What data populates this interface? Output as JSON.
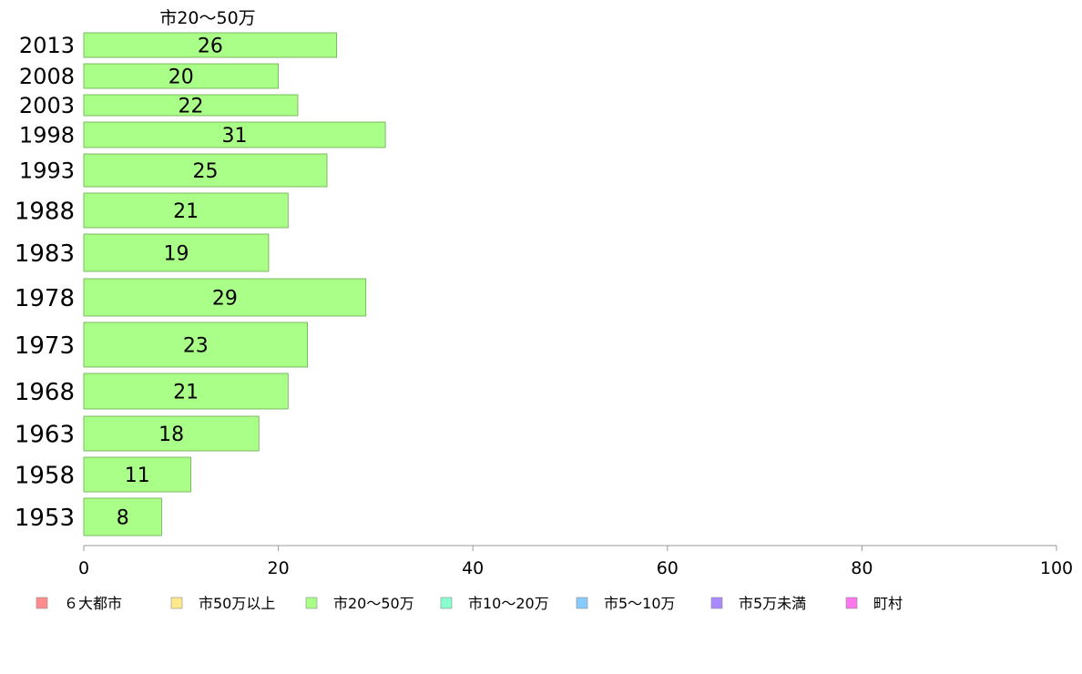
{
  "chart_data": {
    "type": "bar",
    "orientation": "horizontal",
    "title": "",
    "xlabel": "",
    "ylabel": "",
    "xlim": [
      0,
      100
    ],
    "x_ticks": [
      0,
      20,
      40,
      60,
      80,
      100
    ],
    "grid": false,
    "series_label": "市20〜50万",
    "categories": [
      "2013",
      "2008",
      "2003",
      "1998",
      "1993",
      "1988",
      "1983",
      "1978",
      "1973",
      "1968",
      "1963",
      "1958",
      "1953"
    ],
    "values": [
      26,
      20,
      22,
      31,
      25,
      21,
      19,
      29,
      23,
      21,
      18,
      11,
      8
    ],
    "bar_color": "#aaff88",
    "legend_placement": "bottom",
    "legend": [
      {
        "label": "６大都市",
        "color": "#ff8c8c"
      },
      {
        "label": "市50万以上",
        "color": "#ffe98c"
      },
      {
        "label": "市20〜50万",
        "color": "#aaff88"
      },
      {
        "label": "市10〜20万",
        "color": "#88ffcc"
      },
      {
        "label": "市5〜10万",
        "color": "#88ccff"
      },
      {
        "label": "市5万未満",
        "color": "#aa88ff"
      },
      {
        "label": "町村",
        "color": "#ff77ee"
      }
    ]
  }
}
